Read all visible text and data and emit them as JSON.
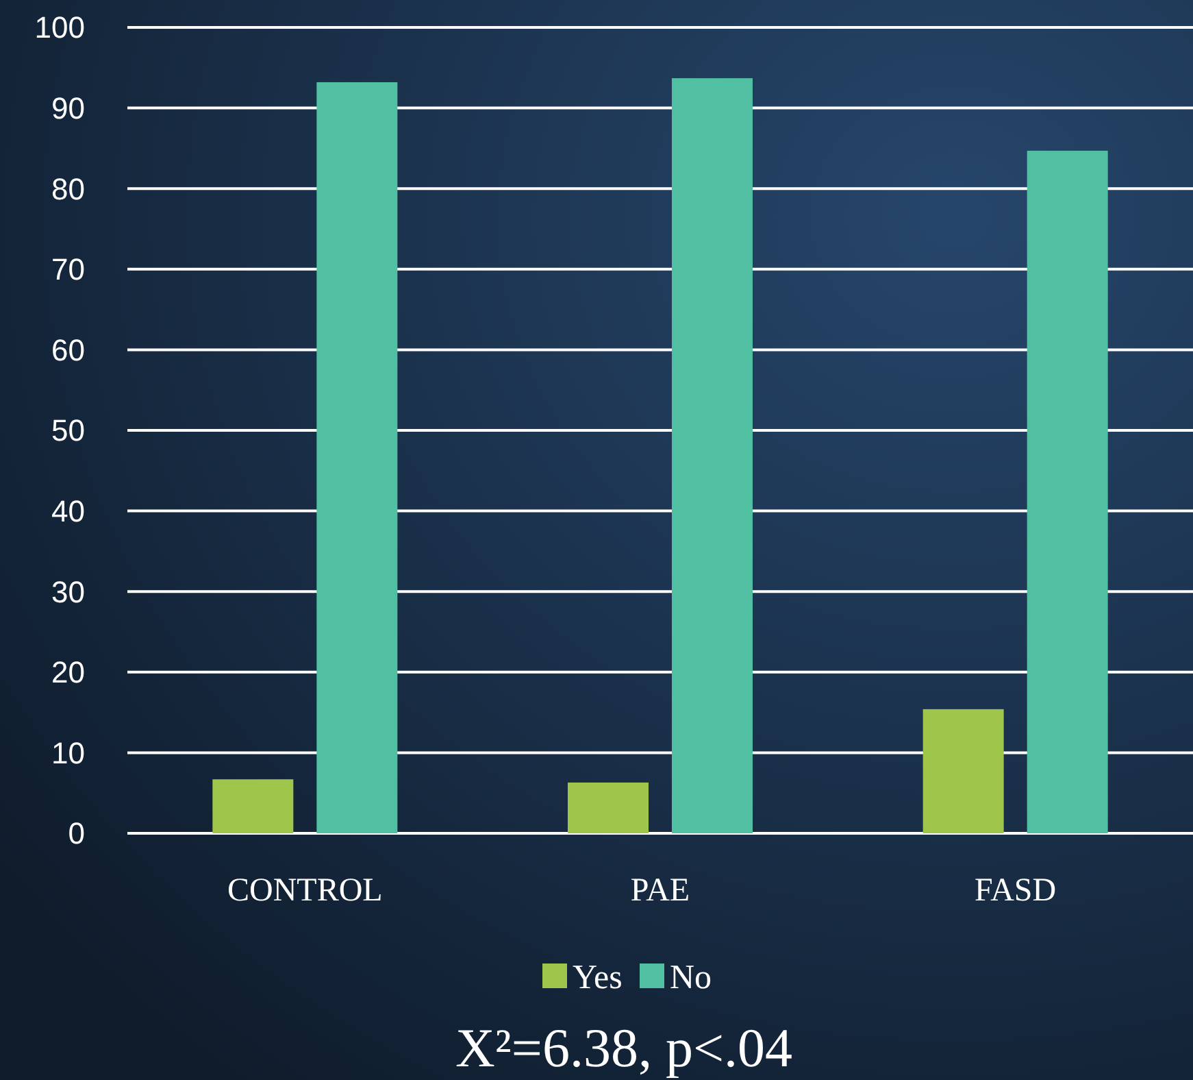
{
  "chart_data": {
    "type": "bar",
    "categories": [
      "CONTROL",
      "PAE",
      "FASD"
    ],
    "series": [
      {
        "name": "Yes",
        "color": "#9fc54a",
        "values": [
          6.7,
          6.3,
          15.4
        ]
      },
      {
        "name": "No",
        "color": "#50bfa2",
        "values": [
          93.2,
          93.7,
          84.7
        ]
      }
    ],
    "ylim": [
      0,
      100
    ],
    "yticks": [
      0,
      10,
      20,
      30,
      40,
      50,
      60,
      70,
      80,
      90,
      100
    ],
    "grid": "y",
    "legend": "bottom",
    "annotations": [
      "X²=6.38, p<.04"
    ]
  }
}
